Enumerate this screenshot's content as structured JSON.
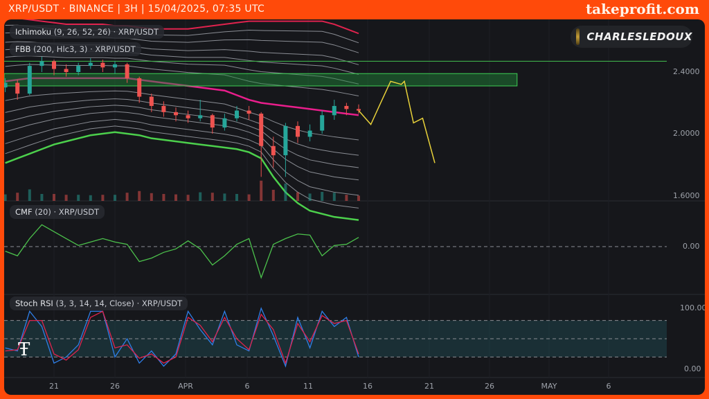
{
  "header": {
    "title": "XRP/USDT · BINANCE | 3H | 15/04/2025, 07:35 UTC",
    "brand": "takeprofit.com"
  },
  "author_badge": {
    "name": "CHARLESLEDOUX"
  },
  "indicators": {
    "ichimoku": {
      "name": "Ichimoku",
      "params": "(9, 26, 52, 26)",
      "symbol": "· XRP/USDT"
    },
    "fbb": {
      "name": "FBB",
      "params": "(200, Hlc3, 3)",
      "symbol": "· XRP/USDT"
    },
    "cmf": {
      "name": "CMF",
      "params": "(20)",
      "symbol": "· XRP/USDT"
    },
    "stoch": {
      "name": "Stoch RSI",
      "params": "(3, 3, 14, 14, Close)",
      "symbol": "· XRP/USDT"
    }
  },
  "colors": {
    "up": "#26a69a",
    "down": "#ef5350",
    "fbb_basis": "#e91e8c",
    "fbb_upper": "#e0234e",
    "fbb_lower": "#4cd04c",
    "zone": "#1e8a3a",
    "projection": "#e8d13a",
    "stoch_k": "#2f7fe8",
    "stoch_d": "#e0234e",
    "cmf": "#4cc24c"
  },
  "chart_data": [
    {
      "type": "candlestick",
      "pane": "price",
      "yticks": [
        "2.4000",
        "2.0000",
        "1.6000"
      ],
      "ylim": [
        1.6,
        2.72
      ],
      "xticks": [
        "21",
        "26",
        "APR",
        "6",
        "11",
        "16",
        "21",
        "26",
        "MAY",
        "6"
      ],
      "dates": [
        "2025-03-17",
        "2025-03-18",
        "2025-03-19",
        "2025-03-20",
        "2025-03-21",
        "2025-03-22",
        "2025-03-23",
        "2025-03-24",
        "2025-03-25",
        "2025-03-26",
        "2025-03-27",
        "2025-03-28",
        "2025-03-29",
        "2025-03-30",
        "2025-03-31",
        "2025-04-01",
        "2025-04-02",
        "2025-04-03",
        "2025-04-04",
        "2025-04-05",
        "2025-04-06",
        "2025-04-07",
        "2025-04-08",
        "2025-04-09",
        "2025-04-10",
        "2025-04-11",
        "2025-04-12",
        "2025-04-13",
        "2025-04-14",
        "2025-04-15"
      ],
      "ohlc": [
        [
          2.3,
          2.36,
          2.27,
          2.33
        ],
        [
          2.33,
          2.35,
          2.22,
          2.26
        ],
        [
          2.26,
          2.46,
          2.25,
          2.44
        ],
        [
          2.44,
          2.5,
          2.4,
          2.47
        ],
        [
          2.47,
          2.48,
          2.38,
          2.42
        ],
        [
          2.42,
          2.45,
          2.37,
          2.4
        ],
        [
          2.4,
          2.46,
          2.38,
          2.44
        ],
        [
          2.44,
          2.49,
          2.42,
          2.46
        ],
        [
          2.46,
          2.48,
          2.4,
          2.43
        ],
        [
          2.43,
          2.47,
          2.39,
          2.45
        ],
        [
          2.45,
          2.46,
          2.33,
          2.36
        ],
        [
          2.36,
          2.37,
          2.2,
          2.24
        ],
        [
          2.24,
          2.26,
          2.14,
          2.18
        ],
        [
          2.18,
          2.21,
          2.11,
          2.14
        ],
        [
          2.14,
          2.17,
          2.08,
          2.12
        ],
        [
          2.12,
          2.15,
          2.07,
          2.1
        ],
        [
          2.1,
          2.22,
          2.08,
          2.12
        ],
        [
          2.12,
          2.13,
          2.0,
          2.04
        ],
        [
          2.04,
          2.13,
          2.02,
          2.1
        ],
        [
          2.1,
          2.18,
          2.08,
          2.15
        ],
        [
          2.15,
          2.18,
          2.09,
          2.13
        ],
        [
          2.13,
          2.14,
          1.72,
          1.92
        ],
        [
          1.92,
          1.98,
          1.78,
          1.86
        ],
        [
          1.86,
          2.07,
          1.72,
          2.05
        ],
        [
          2.05,
          2.08,
          1.94,
          1.98
        ],
        [
          1.98,
          2.06,
          1.95,
          2.02
        ],
        [
          2.02,
          2.15,
          2.0,
          2.12
        ],
        [
          2.12,
          2.22,
          2.09,
          2.18
        ],
        [
          2.18,
          2.2,
          2.12,
          2.16
        ],
        [
          2.16,
          2.19,
          2.13,
          2.15
        ]
      ],
      "fbb": {
        "basis": [
          2.34,
          2.35,
          2.36,
          2.36,
          2.36,
          2.36,
          2.36,
          2.36,
          2.36,
          2.36,
          2.36,
          2.35,
          2.34,
          2.33,
          2.32,
          2.31,
          2.3,
          2.29,
          2.28,
          2.25,
          2.22,
          2.2,
          2.19,
          2.18,
          2.17,
          2.16,
          2.15,
          2.14,
          2.13,
          2.12
        ],
        "upper": [
          2.75,
          2.75,
          2.74,
          2.73,
          2.72,
          2.71,
          2.71,
          2.71,
          2.71,
          2.7,
          2.7,
          2.69,
          2.68,
          2.68,
          2.68,
          2.68,
          2.69,
          2.7,
          2.71,
          2.72,
          2.73,
          2.73,
          2.73,
          2.73,
          2.73,
          2.73,
          2.73,
          2.71,
          2.68,
          2.65
        ],
        "lower": [
          1.81,
          1.84,
          1.87,
          1.9,
          1.93,
          1.95,
          1.97,
          1.99,
          2.0,
          2.01,
          2.0,
          1.99,
          1.97,
          1.96,
          1.95,
          1.94,
          1.93,
          1.92,
          1.91,
          1.9,
          1.88,
          1.84,
          1.72,
          1.62,
          1.55,
          1.5,
          1.48,
          1.46,
          1.45,
          1.44
        ]
      },
      "resistance_line": 2.47,
      "resistance_zone": {
        "top": 2.39,
        "bottom": 2.31,
        "end": "2025-04-28"
      },
      "projection": {
        "dates": [
          "2025-04-15 00:00",
          "2025-04-16 00:00",
          "2025-04-16 18:00",
          "2025-04-17 15:00",
          "2025-04-18 12:00",
          "2025-04-18 18:00",
          "2025-04-19 12:00",
          "2025-04-20 06:00",
          "2025-04-21 06:00"
        ],
        "values": [
          2.15,
          2.06,
          2.19,
          2.34,
          2.32,
          2.34,
          2.07,
          2.1,
          1.81
        ]
      }
    },
    {
      "type": "line",
      "pane": "cmf",
      "yticks": [
        "0.00"
      ],
      "series": [
        {
          "values": [
            -0.04,
            -0.08,
            0.07,
            0.19,
            0.13,
            0.07,
            0.01,
            0.04,
            0.07,
            0.04,
            0.02,
            -0.13,
            -0.1,
            -0.05,
            -0.02,
            0.05,
            -0.02,
            -0.16,
            -0.08,
            0.02,
            0.07,
            -0.27,
            0.02,
            0.07,
            0.11,
            0.1,
            -0.08,
            0.01,
            0.02,
            0.08
          ]
        }
      ]
    },
    {
      "type": "line",
      "pane": "stoch_rsi",
      "yticks": [
        "100.00",
        "0.00"
      ],
      "ylim": [
        0,
        100
      ],
      "bands": [
        20,
        50,
        80
      ],
      "series": [
        {
          "values": [
            35,
            30,
            95,
            70,
            10,
            20,
            40,
            95,
            95,
            20,
            50,
            10,
            30,
            5,
            25,
            95,
            65,
            40,
            95,
            40,
            30,
            100,
            55,
            5,
            85,
            35,
            95,
            70,
            85,
            20
          ]
        },
        {
          "values": [
            30,
            32,
            80,
            80,
            25,
            15,
            32,
            85,
            95,
            35,
            40,
            18,
            25,
            10,
            20,
            85,
            72,
            45,
            85,
            50,
            32,
            90,
            65,
            10,
            75,
            45,
            88,
            75,
            80,
            25
          ]
        }
      ]
    }
  ]
}
